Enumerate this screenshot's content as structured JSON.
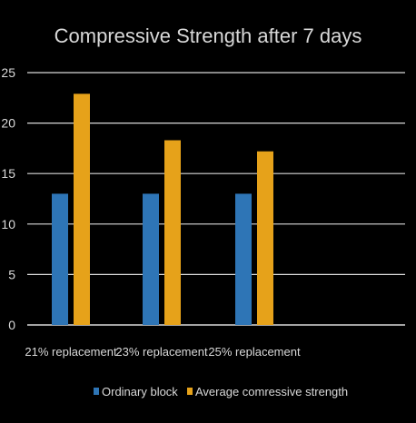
{
  "chart_data": {
    "type": "bar",
    "title": "Compressive Strength after 7 days",
    "categories": [
      "21% replacement",
      "23% replacement",
      "25% replacement"
    ],
    "series": [
      {
        "name": "Ordinary block",
        "values": [
          13,
          13,
          13
        ],
        "color": "#2e75b6"
      },
      {
        "name": "Average comressive strength",
        "values": [
          22.9,
          18.3,
          17.2
        ],
        "color": "#e6a21a"
      }
    ],
    "ylim": [
      0,
      25
    ],
    "yticks": [
      "0",
      "5",
      "10",
      "15",
      "20",
      "25"
    ],
    "grid": true,
    "legend_position": "bottom"
  },
  "colors": {
    "background": "#000000",
    "text": "#d9d9d9",
    "gridline": "#d9d9d9"
  }
}
